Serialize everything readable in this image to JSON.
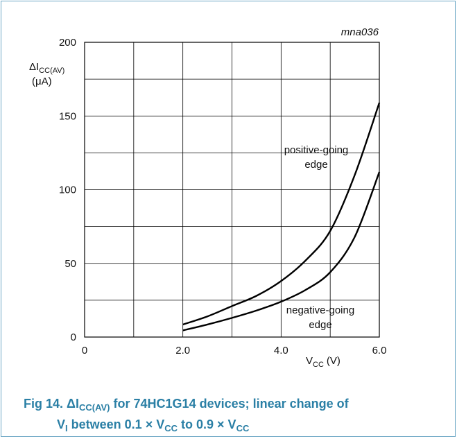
{
  "chart_data": {
    "type": "line",
    "id_label": "mna036",
    "ylabel": "ΔI",
    "ylabel_sub": "CC(AV)",
    "ylabel_unit": "(μA)",
    "xlabel": "V",
    "xlabel_sub": "CC",
    "xlabel_unit": "(V)",
    "xlim": [
      0,
      6
    ],
    "ylim": [
      0,
      200
    ],
    "x_ticks": [
      "0",
      "2.0",
      "4.0",
      "6.0"
    ],
    "y_ticks": [
      "0",
      "50",
      "100",
      "150",
      "200"
    ],
    "grid": true,
    "series": [
      {
        "label_line1": "positive-going",
        "label_line2": "edge",
        "x": [
          2.0,
          2.5,
          3.0,
          3.5,
          4.0,
          4.5,
          5.0,
          5.5,
          6.0
        ],
        "y": [
          8.5,
          14,
          21,
          28,
          38,
          52,
          72,
          110,
          159
        ]
      },
      {
        "label_line1": "negative-going",
        "label_line2": "edge",
        "x": [
          2.0,
          2.5,
          3.0,
          3.5,
          4.0,
          4.5,
          5.0,
          5.5,
          6.0
        ],
        "y": [
          4.5,
          8.5,
          13,
          18,
          24,
          32,
          44,
          68,
          112
        ]
      }
    ]
  },
  "caption": {
    "fig": "Fig 14.",
    "delta": "ΔI",
    "sub1": "CC(AV)",
    "text1": "for 74HC1G14 devices; linear change of",
    "v": "V",
    "sub2": "I",
    "text2": "between 0.1 × V",
    "sub3": "CC",
    "text3": "to 0.9 × V",
    "sub4": "CC"
  }
}
